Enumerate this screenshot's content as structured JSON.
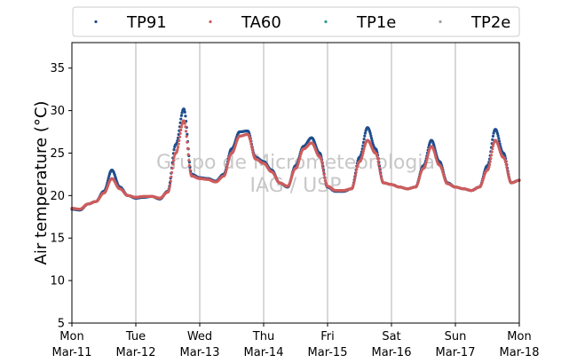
{
  "chart_data": {
    "type": "scatter",
    "title": "",
    "ylabel": "Air temperature (°C)",
    "xlabel": "",
    "ylim": [
      5,
      38
    ],
    "yticks": [
      5,
      10,
      15,
      20,
      25,
      30,
      35
    ],
    "xlim": [
      "2019-03-11",
      "2019-03-18"
    ],
    "xticks": [
      {
        "day": "Mon",
        "date": "Mar-11"
      },
      {
        "day": "Tue",
        "date": "Mar-12"
      },
      {
        "day": "Wed",
        "date": "Mar-13"
      },
      {
        "day": "Thu",
        "date": "Mar-14"
      },
      {
        "day": "Fri",
        "date": "Mar-15"
      },
      {
        "day": "Sat",
        "date": "Mar-16"
      },
      {
        "day": "Sun",
        "date": "Mar-17"
      },
      {
        "day": "Mon",
        "date": "Mar-18"
      }
    ],
    "grid": "vertical",
    "legend_position": "top",
    "watermark": [
      "Grupo de Micrometeorologia",
      "IAG / USP"
    ],
    "series": [
      {
        "name": "TP91",
        "color": "#1f4e8c",
        "x": [
          "2019-03-11 00:00",
          "2019-03-11 03:00",
          "2019-03-11 06:00",
          "2019-03-11 09:00",
          "2019-03-11 12:00",
          "2019-03-11 15:00",
          "2019-03-11 18:00",
          "2019-03-11 21:00",
          "2019-03-12 00:00",
          "2019-03-12 03:00",
          "2019-03-12 06:00",
          "2019-03-12 09:00",
          "2019-03-12 12:00",
          "2019-03-12 15:00",
          "2019-03-12 18:00",
          "2019-03-12 21:00",
          "2019-03-13 00:00",
          "2019-03-13 03:00",
          "2019-03-13 06:00",
          "2019-03-13 09:00",
          "2019-03-13 12:00",
          "2019-03-13 15:00",
          "2019-03-13 18:00",
          "2019-03-13 21:00",
          "2019-03-14 00:00",
          "2019-03-14 03:00",
          "2019-03-14 06:00",
          "2019-03-14 09:00",
          "2019-03-14 12:00",
          "2019-03-14 15:00",
          "2019-03-14 18:00",
          "2019-03-14 21:00",
          "2019-03-15 00:00",
          "2019-03-15 03:00",
          "2019-03-15 06:00",
          "2019-03-15 09:00",
          "2019-03-15 12:00",
          "2019-03-15 15:00",
          "2019-03-15 18:00",
          "2019-03-15 21:00",
          "2019-03-16 00:00",
          "2019-03-16 03:00",
          "2019-03-16 06:00",
          "2019-03-16 09:00",
          "2019-03-16 12:00",
          "2019-03-16 15:00",
          "2019-03-16 18:00",
          "2019-03-16 21:00",
          "2019-03-17 00:00",
          "2019-03-17 03:00",
          "2019-03-17 06:00",
          "2019-03-17 09:00",
          "2019-03-17 12:00",
          "2019-03-17 15:00",
          "2019-03-17 18:00",
          "2019-03-17 21:00",
          "2019-03-18 00:00"
        ],
        "y": [
          18.4,
          18.3,
          19.0,
          19.3,
          20.5,
          23.0,
          21.0,
          20.0,
          19.7,
          19.8,
          19.9,
          19.6,
          20.5,
          26.0,
          30.2,
          22.5,
          22.1,
          22.0,
          21.7,
          22.5,
          25.5,
          27.5,
          27.6,
          24.5,
          24.0,
          23.0,
          21.5,
          21.0,
          23.5,
          25.8,
          26.8,
          25.0,
          21.0,
          20.5,
          20.5,
          20.8,
          24.5,
          28.0,
          25.5,
          21.5,
          21.3,
          21.0,
          20.8,
          21.0,
          23.5,
          26.5,
          24.0,
          21.5,
          21.0,
          20.8,
          20.6,
          21.0,
          23.5,
          27.8,
          25.0,
          21.5,
          21.8
        ]
      },
      {
        "name": "TA60",
        "color": "#cd5c5c",
        "x": [
          "2019-03-11 00:00",
          "2019-03-11 03:00",
          "2019-03-11 06:00",
          "2019-03-11 09:00",
          "2019-03-11 12:00",
          "2019-03-11 15:00",
          "2019-03-11 18:00",
          "2019-03-11 21:00",
          "2019-03-12 00:00",
          "2019-03-12 03:00",
          "2019-03-12 06:00",
          "2019-03-12 09:00",
          "2019-03-12 12:00",
          "2019-03-12 15:00",
          "2019-03-12 18:00",
          "2019-03-12 21:00",
          "2019-03-13 00:00",
          "2019-03-13 03:00",
          "2019-03-13 06:00",
          "2019-03-13 09:00",
          "2019-03-13 12:00",
          "2019-03-13 15:00",
          "2019-03-13 18:00",
          "2019-03-13 21:00",
          "2019-03-14 00:00",
          "2019-03-14 03:00",
          "2019-03-14 06:00",
          "2019-03-14 09:00",
          "2019-03-14 12:00",
          "2019-03-14 15:00",
          "2019-03-14 18:00",
          "2019-03-14 21:00",
          "2019-03-15 00:00",
          "2019-03-15 03:00",
          "2019-03-15 06:00",
          "2019-03-15 09:00",
          "2019-03-15 12:00",
          "2019-03-15 15:00",
          "2019-03-15 18:00",
          "2019-03-15 21:00",
          "2019-03-16 00:00",
          "2019-03-16 03:00",
          "2019-03-16 06:00",
          "2019-03-16 09:00",
          "2019-03-16 12:00",
          "2019-03-16 15:00",
          "2019-03-16 18:00",
          "2019-03-16 21:00",
          "2019-03-17 00:00",
          "2019-03-17 03:00",
          "2019-03-17 06:00",
          "2019-03-17 09:00",
          "2019-03-17 12:00",
          "2019-03-17 15:00",
          "2019-03-17 18:00",
          "2019-03-17 21:00",
          "2019-03-18 00:00"
        ],
        "y": [
          18.5,
          18.4,
          19.0,
          19.3,
          20.3,
          22.0,
          20.8,
          20.0,
          19.8,
          19.9,
          19.9,
          19.7,
          20.4,
          25.0,
          28.8,
          22.3,
          22.0,
          21.9,
          21.6,
          22.3,
          25.0,
          27.0,
          27.2,
          24.3,
          23.8,
          22.8,
          21.5,
          21.1,
          23.2,
          25.5,
          26.2,
          24.6,
          21.1,
          20.6,
          20.6,
          20.8,
          24.0,
          26.5,
          25.0,
          21.5,
          21.3,
          21.0,
          20.8,
          21.0,
          23.2,
          25.8,
          23.6,
          21.4,
          21.0,
          20.8,
          20.6,
          21.0,
          23.0,
          26.5,
          24.5,
          21.5,
          21.8
        ]
      },
      {
        "name": "TP1e",
        "color": "#2a9d8f",
        "x": [],
        "y": []
      },
      {
        "name": "TP2e",
        "color": "#a0a0a0",
        "x": [],
        "y": []
      }
    ]
  }
}
